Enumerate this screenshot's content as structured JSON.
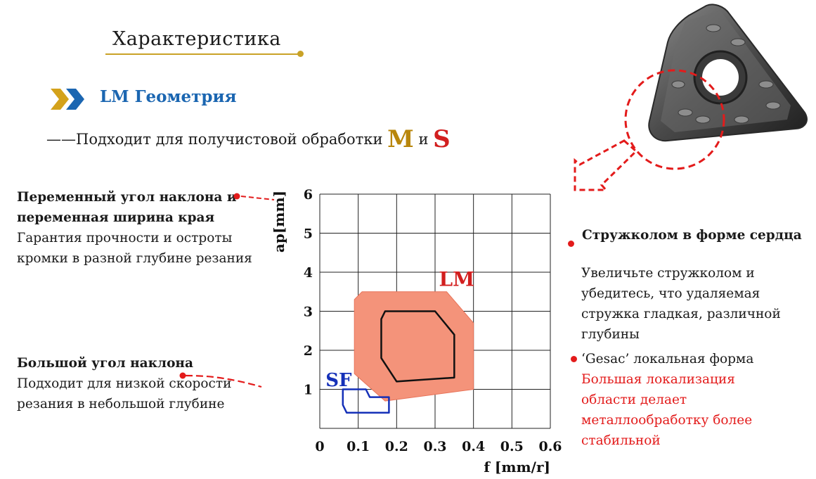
{
  "header": {
    "title": "Характеристика",
    "geometry_title": "LM Геометрия",
    "subtitle_prefix": "——Подходит для получистовой обработки",
    "subtitle_m": "M",
    "subtitle_and": "и",
    "subtitle_s": "S"
  },
  "left_annotations": {
    "item1_bold_line1": "Переменный угол наклона  и",
    "item1_bold_line2": "переменная ширина края",
    "item1_text_line1": "Гарантия прочности и остроты",
    "item1_text_line2": "кромки в разной глубине резания",
    "item2_bold": "Большой угол наклона",
    "item2_text_line1": "Подходит для низкой скорости",
    "item2_text_line2": "резания в небольшой глубине"
  },
  "right_annotations": {
    "item1_bold": "Стружколом в форме сердца",
    "item1_text_line1": "Увеличьте стружколом и",
    "item1_text_line2": "убедитесь, что удаляемая",
    "item1_text_line3": "стружка гладкая, различной",
    "item1_text_line4": "глубины",
    "item2_line1": "‘Gesac’ локальная форма",
    "item2_red_line1": "Большая локализация",
    "item2_red_line2": "области делает",
    "item2_red_line3": "металлообработку более",
    "item2_red_line4": "стабильной"
  },
  "colors": {
    "gold": "#c9a227",
    "blue": "#1b66b1",
    "red": "#e31b1b",
    "lm_fill": "#f4937a",
    "sf_outline": "#1530b8"
  },
  "icons": [
    "double-chevron-icon",
    "insert-image",
    "dashed-arrow-icon",
    "dashed-circle-icon"
  ],
  "chart_data": {
    "type": "area",
    "xlabel": "f [mm/r]",
    "ylabel": "ap[mm]",
    "x_ticks": [
      "0",
      "0.1",
      "0.2",
      "0.3",
      "0.4",
      "0.5",
      "0.6"
    ],
    "y_ticks": [
      "1",
      "2",
      "3",
      "4",
      "5",
      "6"
    ],
    "xlim": [
      0,
      0.6
    ],
    "ylim": [
      0,
      6
    ],
    "grid": true,
    "regions": [
      {
        "name": "LM",
        "kind": "filled",
        "polygon": [
          [
            0.11,
            3.5
          ],
          [
            0.33,
            3.5
          ],
          [
            0.4,
            2.7
          ],
          [
            0.4,
            1.0
          ],
          [
            0.17,
            0.7
          ],
          [
            0.09,
            1.4
          ],
          [
            0.09,
            3.3
          ]
        ]
      },
      {
        "name": "LM-core",
        "kind": "outline",
        "polygon": [
          [
            0.17,
            3.0
          ],
          [
            0.3,
            3.0
          ],
          [
            0.35,
            2.4
          ],
          [
            0.35,
            1.3
          ],
          [
            0.2,
            1.2
          ],
          [
            0.16,
            1.8
          ],
          [
            0.16,
            2.8
          ]
        ]
      },
      {
        "name": "SF",
        "kind": "outline",
        "polygon": [
          [
            0.06,
            1.0
          ],
          [
            0.12,
            1.0
          ],
          [
            0.13,
            0.8
          ],
          [
            0.18,
            0.8
          ],
          [
            0.18,
            0.4
          ],
          [
            0.07,
            0.4
          ],
          [
            0.06,
            0.6
          ]
        ]
      }
    ]
  }
}
